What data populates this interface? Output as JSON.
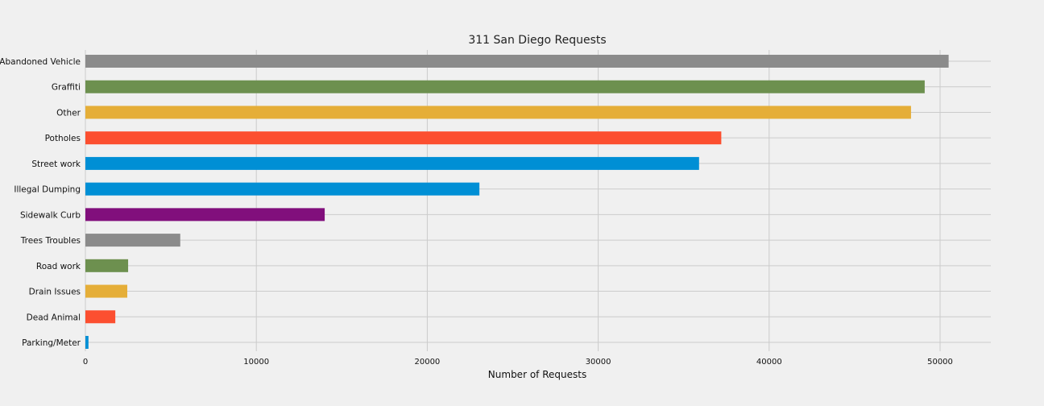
{
  "chart_data": {
    "type": "bar",
    "orientation": "horizontal",
    "title": "311 San Diego Requests",
    "xlabel": "Number of Requests",
    "ylabel": "",
    "xlim": [
      0,
      53000
    ],
    "xticks": [
      0,
      10000,
      20000,
      30000,
      40000,
      50000
    ],
    "grid": true,
    "categories": [
      "Abandoned Vehicle",
      "Graffiti",
      "Other",
      "Potholes",
      "Street work",
      "Illegal Dumping",
      "Sidewalk Curb",
      "Trees Troubles",
      "Road work",
      "Drain Issues",
      "Dead Animal",
      "Parking/Meter"
    ],
    "values": [
      50500,
      49100,
      48300,
      37200,
      35900,
      23050,
      14000,
      5550,
      2500,
      2450,
      1750,
      180
    ],
    "colors": [
      "#8b8b8b",
      "#6d904f",
      "#e5ae38",
      "#fc4f30",
      "#008fd5",
      "#008fd5",
      "#810f7c",
      "#8b8b8b",
      "#6d904f",
      "#e5ae38",
      "#fc4f30",
      "#008fd5"
    ]
  }
}
